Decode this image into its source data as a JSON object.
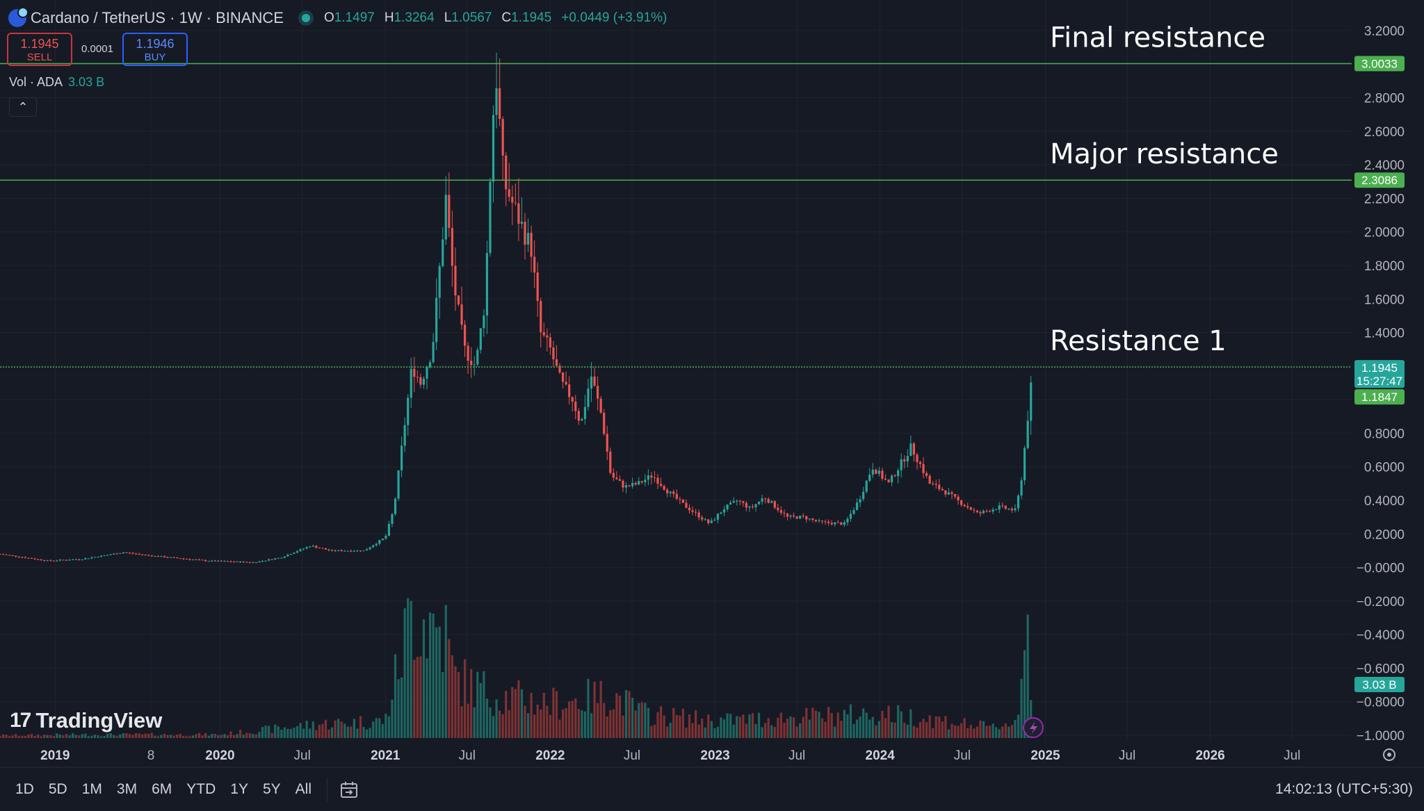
{
  "header": {
    "title": "Cardano / TetherUS · 1W · BINANCE",
    "o_label": "O",
    "o_value": "1.1497",
    "h_label": "H",
    "h_value": "1.3264",
    "l_label": "L",
    "l_value": "1.0567",
    "c_label": "C",
    "c_value": "1.1945",
    "change": "+0.0449 (+3.91%)"
  },
  "trade": {
    "sell_price": "1.1945",
    "sell_label": "SELL",
    "spread": "0.0001",
    "buy_price": "1.1946",
    "buy_label": "BUY"
  },
  "volume_legend": {
    "label": "Vol · ADA",
    "value": "3.03 B"
  },
  "collapse_glyph": "⌃",
  "logo": {
    "mark": "17",
    "text": "TradingView"
  },
  "timeframes": [
    "1D",
    "5D",
    "1M",
    "3M",
    "6M",
    "YTD",
    "1Y",
    "5Y",
    "All"
  ],
  "clock": "14:02:13 (UTC+5:30)",
  "colors": {
    "up": "#26a69a",
    "down": "#ef5350",
    "level_line": "#4caf50",
    "background": "#161a25"
  },
  "chart_data": {
    "type": "candlestick",
    "symbol": "ADA/USDT",
    "interval": "1W",
    "ylim": [
      -1.0,
      3.2
    ],
    "y_ticks": [
      "3.2000",
      "2.8000",
      "2.6000",
      "2.4000",
      "2.2000",
      "2.0000",
      "1.8000",
      "1.6000",
      "1.4000",
      "0.8000",
      "0.6000",
      "0.4000",
      "0.2000",
      "−0.0000",
      "−0.2000",
      "−0.4000",
      "−0.6000",
      "−0.8000",
      "−1.0000"
    ],
    "x_ticks": [
      {
        "label": "2019",
        "date": "2019-01-01",
        "bold": true
      },
      {
        "label": "8",
        "date": "2019-08-01",
        "bold": false
      },
      {
        "label": "2020",
        "date": "2020-01-01",
        "bold": true
      },
      {
        "label": "Jul",
        "date": "2020-07-01",
        "bold": false
      },
      {
        "label": "2021",
        "date": "2021-01-01",
        "bold": true
      },
      {
        "label": "Jul",
        "date": "2021-07-01",
        "bold": false
      },
      {
        "label": "2022",
        "date": "2022-01-01",
        "bold": true
      },
      {
        "label": "Jul",
        "date": "2022-07-01",
        "bold": false
      },
      {
        "label": "2023",
        "date": "2023-01-01",
        "bold": true
      },
      {
        "label": "Jul",
        "date": "2023-07-01",
        "bold": false
      },
      {
        "label": "2024",
        "date": "2024-01-01",
        "bold": true
      },
      {
        "label": "Jul",
        "date": "2024-07-01",
        "bold": false
      },
      {
        "label": "2025",
        "date": "2025-01-01",
        "bold": true
      },
      {
        "label": "Jul",
        "date": "2025-07-01",
        "bold": false
      },
      {
        "label": "2026",
        "date": "2026-01-01",
        "bold": true
      },
      {
        "label": "Jul",
        "date": "2026-07-01",
        "bold": false
      }
    ],
    "x_start": "2018-09-01",
    "x_end": "2026-11-10",
    "price_path": [
      [
        "2018-09-01",
        0.08
      ],
      [
        "2018-12-15",
        0.04
      ],
      [
        "2019-03-01",
        0.05
      ],
      [
        "2019-06-01",
        0.09
      ],
      [
        "2019-08-01",
        0.07
      ],
      [
        "2019-12-01",
        0.04
      ],
      [
        "2020-03-15",
        0.03
      ],
      [
        "2020-05-15",
        0.06
      ],
      [
        "2020-07-20",
        0.13
      ],
      [
        "2020-09-01",
        0.1
      ],
      [
        "2020-11-15",
        0.1
      ],
      [
        "2021-01-01",
        0.18
      ],
      [
        "2021-01-20",
        0.35
      ],
      [
        "2021-02-15",
        0.9
      ],
      [
        "2021-03-01",
        1.2
      ],
      [
        "2021-03-20",
        1.1
      ],
      [
        "2021-04-15",
        1.3
      ],
      [
        "2021-05-15",
        2.2
      ],
      [
        "2021-06-01",
        1.7
      ],
      [
        "2021-06-25",
        1.3
      ],
      [
        "2021-07-20",
        1.2
      ],
      [
        "2021-08-10",
        1.6
      ],
      [
        "2021-08-25",
        2.6
      ],
      [
        "2021-09-03",
        2.95
      ],
      [
        "2021-09-20",
        2.3
      ],
      [
        "2021-10-20",
        2.1
      ],
      [
        "2021-11-20",
        1.9
      ],
      [
        "2021-12-10",
        1.4
      ],
      [
        "2022-01-01",
        1.3
      ],
      [
        "2022-01-25",
        1.1
      ],
      [
        "2022-02-20",
        1.0
      ],
      [
        "2022-03-10",
        0.85
      ],
      [
        "2022-04-01",
        1.15
      ],
      [
        "2022-04-25",
        0.9
      ],
      [
        "2022-05-15",
        0.55
      ],
      [
        "2022-06-15",
        0.48
      ],
      [
        "2022-07-15",
        0.5
      ],
      [
        "2022-08-15",
        0.55
      ],
      [
        "2022-09-20",
        0.45
      ],
      [
        "2022-10-20",
        0.38
      ],
      [
        "2022-12-20",
        0.26
      ],
      [
        "2023-01-20",
        0.35
      ],
      [
        "2023-02-20",
        0.4
      ],
      [
        "2023-03-20",
        0.35
      ],
      [
        "2023-04-20",
        0.42
      ],
      [
        "2023-06-10",
        0.3
      ],
      [
        "2023-07-15",
        0.3
      ],
      [
        "2023-08-20",
        0.27
      ],
      [
        "2023-10-15",
        0.26
      ],
      [
        "2023-11-15",
        0.4
      ],
      [
        "2023-12-15",
        0.6
      ],
      [
        "2024-01-20",
        0.5
      ],
      [
        "2024-03-10",
        0.72
      ],
      [
        "2024-04-20",
        0.5
      ],
      [
        "2024-05-20",
        0.46
      ],
      [
        "2024-06-20",
        0.4
      ],
      [
        "2024-08-05",
        0.32
      ],
      [
        "2024-09-20",
        0.36
      ],
      [
        "2024-10-28",
        0.34
      ],
      [
        "2024-11-10",
        0.55
      ],
      [
        "2024-11-25",
        0.95
      ],
      [
        "2024-12-03",
        1.1945
      ]
    ],
    "volume_path": [
      [
        "2018-09-01",
        0.015
      ],
      [
        "2019-04-01",
        0.02
      ],
      [
        "2020-01-01",
        0.02
      ],
      [
        "2020-08-01",
        0.08
      ],
      [
        "2021-01-01",
        0.1
      ],
      [
        "2021-03-01",
        0.75
      ],
      [
        "2021-05-15",
        0.6
      ],
      [
        "2021-06-01",
        0.35
      ],
      [
        "2021-09-01",
        0.25
      ],
      [
        "2022-01-01",
        0.2
      ],
      [
        "2022-05-15",
        0.25
      ],
      [
        "2022-08-01",
        0.14
      ],
      [
        "2023-01-01",
        0.1
      ],
      [
        "2023-07-01",
        0.12
      ],
      [
        "2024-01-01",
        0.14
      ],
      [
        "2024-04-01",
        0.12
      ],
      [
        "2024-09-01",
        0.06
      ],
      [
        "2024-11-01",
        0.1
      ],
      [
        "2024-11-20",
        0.8
      ],
      [
        "2024-12-03",
        0.2
      ]
    ],
    "levels": [
      {
        "price": 3.0033,
        "label": "Final resistance",
        "tag": "3.0033"
      },
      {
        "price": 2.3086,
        "label": "Major resistance",
        "tag": "2.3086"
      },
      {
        "price": 1.1945,
        "label": "Resistance 1",
        "tag": "1.1945"
      }
    ],
    "last_price_tag": {
      "price": "1.1945",
      "countdown": "15:27:47"
    },
    "prev_close_tag": "1.1847",
    "volume_tag": "3.03 B"
  }
}
